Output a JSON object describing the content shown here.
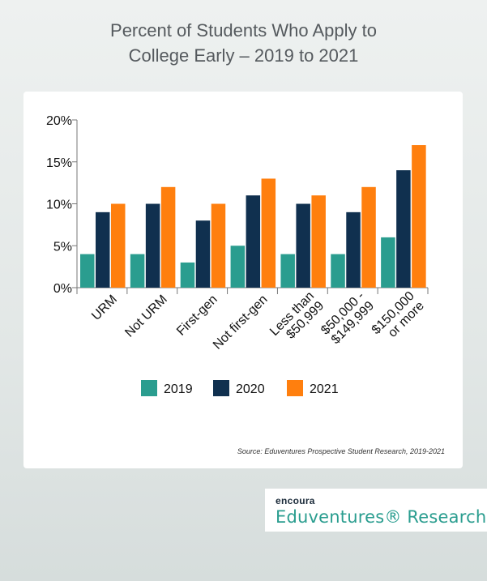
{
  "title_line1": "Percent of Students Who Apply to",
  "title_line2": "College Early – 2019 to 2021",
  "source": "Source: Eduventures Prospective Student Research, 2019-2021",
  "brand": {
    "encoura": "encoura",
    "eduventures": "Eduventures® Research"
  },
  "colors": {
    "2019": "#2a9d8f",
    "2020": "#10304f",
    "2021": "#ff7f0e"
  },
  "chart_data": {
    "type": "bar",
    "title": "Percent of Students Who Apply to College Early – 2019 to 2021",
    "categories": [
      [
        "URM"
      ],
      [
        "Not URM"
      ],
      [
        "First-gen"
      ],
      [
        "Not first-gen"
      ],
      [
        "Less than",
        "$50,999"
      ],
      [
        "$50,000 -",
        "$149,999"
      ],
      [
        "$150,000",
        "or more"
      ]
    ],
    "series": [
      {
        "name": "2019",
        "values": [
          4,
          4,
          3,
          5,
          4,
          4,
          6
        ]
      },
      {
        "name": "2020",
        "values": [
          9,
          10,
          8,
          11,
          10,
          9,
          14
        ]
      },
      {
        "name": "2021",
        "values": [
          10,
          12,
          10,
          13,
          11,
          12,
          17
        ]
      }
    ],
    "yticks": [
      "0%",
      "5%",
      "10%",
      "15%",
      "20%"
    ],
    "ylim": [
      0,
      20
    ],
    "legend": "bottom",
    "grid": false
  }
}
